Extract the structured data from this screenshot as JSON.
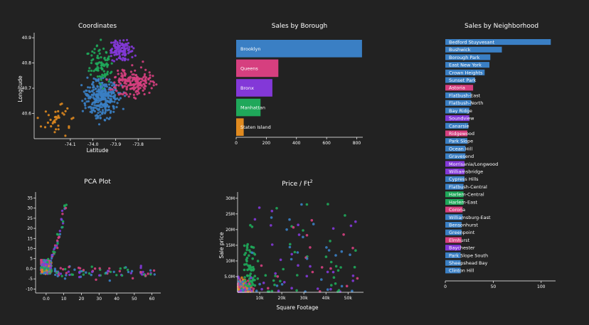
{
  "colors": {
    "background": "#222222",
    "brooklyn": "#3a7fc4",
    "queens": "#d63f7f",
    "bronx": "#8338d8",
    "manhattan": "#1fa85a",
    "staten_island": "#e08a1f",
    "axis": "#ffffff"
  },
  "chart_data": [
    {
      "id": "coordinates",
      "type": "scatter",
      "title": "Coordinates",
      "xlabel": "Latitude",
      "ylabel": "Longitude",
      "xlim": [
        -74.26,
        -73.7
      ],
      "ylim": [
        40.5,
        40.92
      ],
      "xticks": [
        "-74.1",
        "-74.0",
        "-73.9",
        "-73.8"
      ],
      "yticks": [
        "40.6",
        "40.7",
        "40.8",
        "40.9"
      ],
      "clusters": [
        {
          "borough": "Brooklyn",
          "x": [
            -74.04,
            -73.88
          ],
          "y": [
            40.58,
            40.74
          ],
          "n": 320
        },
        {
          "borough": "Queens",
          "x": [
            -73.92,
            -73.73
          ],
          "y": [
            40.66,
            40.79
          ],
          "n": 180
        },
        {
          "borough": "Bronx",
          "x": [
            -73.93,
            -73.82
          ],
          "y": [
            40.8,
            40.9
          ],
          "n": 120
        },
        {
          "borough": "Manhattan",
          "x": [
            -74.02,
            -73.91
          ],
          "y": [
            40.7,
            40.88
          ],
          "n": 90
        },
        {
          "borough": "Staten Island",
          "x": [
            -74.25,
            -74.07
          ],
          "y": [
            40.5,
            40.65
          ],
          "n": 35
        }
      ]
    },
    {
      "id": "sales-by-borough",
      "type": "bar",
      "orientation": "horizontal",
      "title": "Sales by Borough",
      "categories": [
        "Brooklyn",
        "Queens",
        "Bronx",
        "Manhattan",
        "Staten Island"
      ],
      "values": [
        835,
        280,
        240,
        162,
        50
      ],
      "xlim": [
        0,
        840
      ],
      "xticks": [
        "0",
        "200",
        "400",
        "600",
        "800"
      ]
    },
    {
      "id": "sales-by-neighborhood",
      "type": "bar",
      "orientation": "horizontal",
      "title": "Sales by Neighborhood",
      "categories": [
        "Bedford Stuyvesant",
        "Bushwick",
        "Borough Park",
        "East New York",
        "Crown Heights",
        "Sunset Park",
        "Astoria",
        "Flatbush-East",
        "Flatbush-North",
        "Bay Ridge",
        "Soundview",
        "Canarsie",
        "Ridgewood",
        "Park Slope",
        "Ocean Hill",
        "Gravesend",
        "Morrisania/Longwood",
        "Williamsbridge",
        "Cypress Hills",
        "Flatbush-Central",
        "Harlem-Central",
        "Harlem-East",
        "Corona",
        "Williamsburg-East",
        "Bensonhurst",
        "Greenpoint",
        "Elmhurst",
        "Baychester",
        "Park Slope South",
        "Sheepshead Bay",
        "Clinton Hill"
      ],
      "boroughs": [
        "Brooklyn",
        "Brooklyn",
        "Brooklyn",
        "Brooklyn",
        "Brooklyn",
        "Brooklyn",
        "Queens",
        "Brooklyn",
        "Brooklyn",
        "Brooklyn",
        "Bronx",
        "Brooklyn",
        "Queens",
        "Brooklyn",
        "Brooklyn",
        "Brooklyn",
        "Bronx",
        "Bronx",
        "Brooklyn",
        "Brooklyn",
        "Manhattan",
        "Manhattan",
        "Queens",
        "Brooklyn",
        "Brooklyn",
        "Brooklyn",
        "Queens",
        "Bronx",
        "Brooklyn",
        "Brooklyn",
        "Brooklyn"
      ],
      "values": [
        110,
        59,
        47,
        46,
        41,
        31,
        29,
        27,
        27,
        25,
        25,
        24,
        23,
        23,
        21,
        21,
        20,
        20,
        20,
        19,
        19,
        19,
        18,
        18,
        17,
        17,
        17,
        16,
        16,
        16,
        16
      ],
      "xlim": [
        0,
        115
      ],
      "xticks": [
        "0",
        "50",
        "100"
      ]
    },
    {
      "id": "pca-plot",
      "type": "scatter",
      "title": "PCA Plot",
      "xlim": [
        -6,
        65
      ],
      "ylim": [
        -12,
        38
      ],
      "xticks": [
        "0.0",
        "10",
        "20",
        "30",
        "40",
        "50",
        "60"
      ],
      "xtick_values": [
        0,
        10,
        20,
        30,
        40,
        50,
        60
      ],
      "yticks": [
        "-10",
        "-5",
        "0.0",
        "5",
        "10",
        "15",
        "20",
        "25",
        "30",
        "35"
      ],
      "ytick_values": [
        -10,
        -5,
        0,
        5,
        10,
        15,
        20,
        25,
        30,
        35
      ]
    },
    {
      "id": "price-per-sqft",
      "type": "scatter",
      "title": "Price / Ft",
      "title_superscript": "2",
      "xlabel": "Square Footage",
      "ylabel": "Sale price",
      "xlim": [
        0,
        57000
      ],
      "ylim": [
        0,
        32000000
      ],
      "xticks": [
        "10k",
        "20k",
        "30k",
        "40k",
        "50k"
      ],
      "xtick_values": [
        10000,
        20000,
        30000,
        40000,
        50000
      ],
      "yticks": [
        "5.0M",
        "10M",
        "15M",
        "20M",
        "25M",
        "30M"
      ],
      "ytick_values": [
        5000000,
        10000000,
        15000000,
        20000000,
        25000000,
        30000000
      ]
    }
  ]
}
